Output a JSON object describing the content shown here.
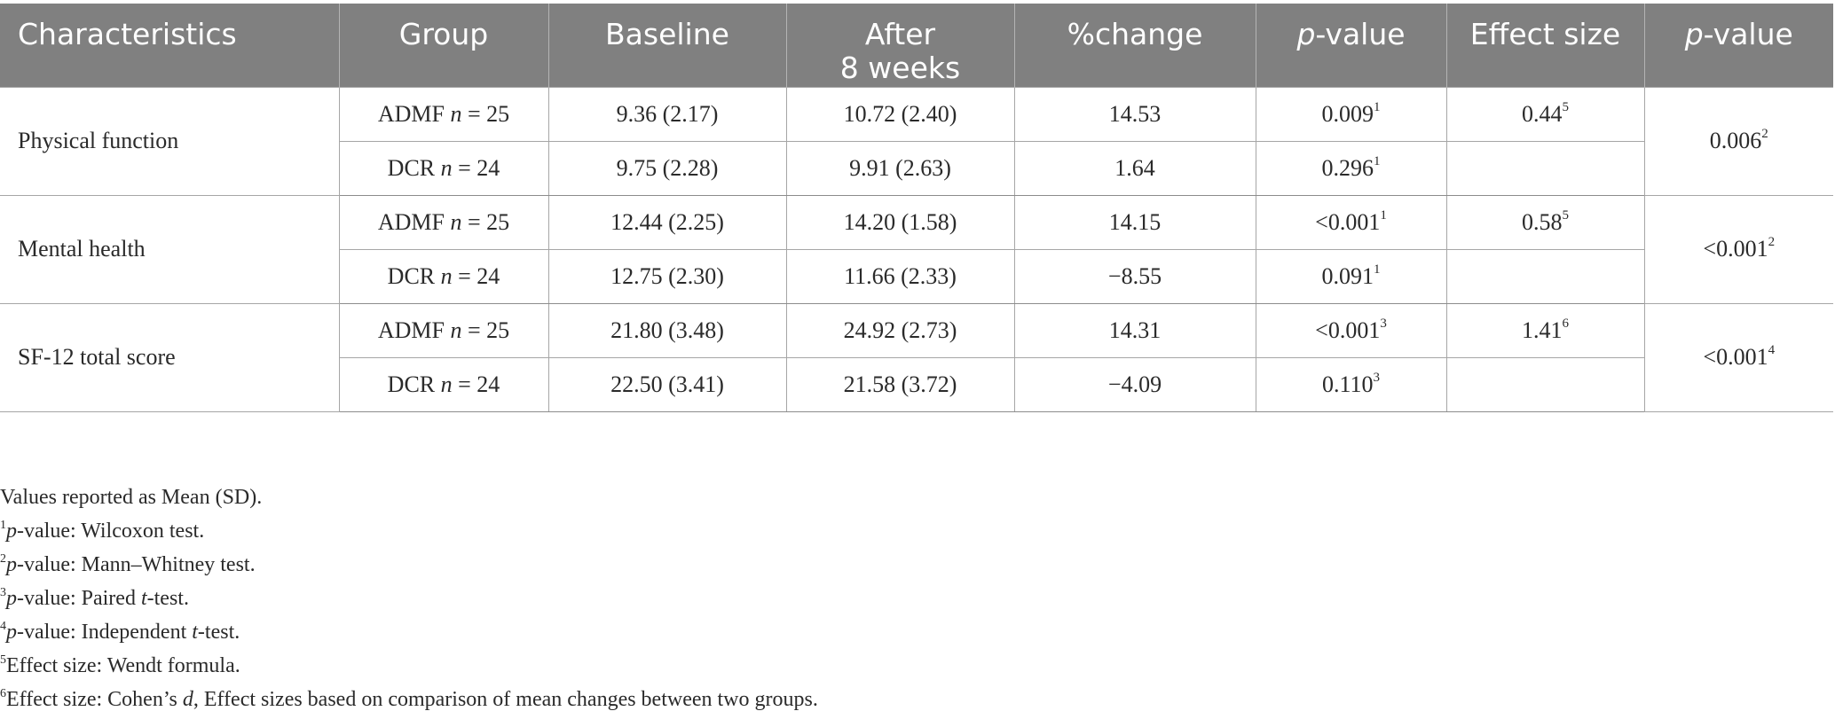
{
  "table": {
    "headers": {
      "characteristics": "Characteristics",
      "group": "Group",
      "baseline": "Baseline",
      "after_line1": "After",
      "after_line2": "8 weeks",
      "pct_change": "%change",
      "p": "p",
      "pvalue_suffix": "-value",
      "effect_size": "Effect size",
      "p2": "p",
      "pvalue2_suffix": "-value"
    },
    "sections": [
      {
        "characteristic": "Physical function",
        "between_pvalue": "0.006",
        "between_pvalue_sup": "2",
        "rows": [
          {
            "group": "ADMF",
            "n_label": "n",
            "n_value": " = 25",
            "baseline": "9.36 (2.17)",
            "after": "10.72 (2.40)",
            "change": "14.53",
            "pvalue": "0.009",
            "pvalue_sup": "1",
            "effect": "0.44",
            "effect_sup": "5"
          },
          {
            "group": "DCR",
            "n_label": "n",
            "n_value": " = 24",
            "baseline": "9.75 (2.28)",
            "after": "9.91 (2.63)",
            "change": "1.64",
            "pvalue": "0.296",
            "pvalue_sup": "1",
            "effect": "",
            "effect_sup": ""
          }
        ]
      },
      {
        "characteristic": "Mental health",
        "between_pvalue": "<0.001",
        "between_pvalue_sup": "2",
        "rows": [
          {
            "group": "ADMF",
            "n_label": "n",
            "n_value": " = 25",
            "baseline": "12.44 (2.25)",
            "after": "14.20 (1.58)",
            "change": "14.15",
            "pvalue": "<0.001",
            "pvalue_sup": "1",
            "effect": "0.58",
            "effect_sup": "5"
          },
          {
            "group": "DCR",
            "n_label": "n",
            "n_value": " = 24",
            "baseline": "12.75 (2.30)",
            "after": "11.66 (2.33)",
            "change": "−8.55",
            "pvalue": "0.091",
            "pvalue_sup": "1",
            "effect": "",
            "effect_sup": ""
          }
        ]
      },
      {
        "characteristic": "SF-12 total score",
        "between_pvalue": "<0.001",
        "between_pvalue_sup": "4",
        "rows": [
          {
            "group": "ADMF",
            "n_label": "n",
            "n_value": " = 25",
            "baseline": "21.80 (3.48)",
            "after": "24.92 (2.73)",
            "change": "14.31",
            "pvalue": "<0.001",
            "pvalue_sup": "3",
            "effect": "1.41",
            "effect_sup": "6"
          },
          {
            "group": "DCR",
            "n_label": "n",
            "n_value": " = 24",
            "baseline": "22.50 (3.41)",
            "after": "21.58 (3.72)",
            "change": "−4.09",
            "pvalue": "0.110",
            "pvalue_sup": "3",
            "effect": "",
            "effect_sup": ""
          }
        ]
      }
    ]
  },
  "notes": {
    "values_note": "Values reported as Mean (SD).",
    "items": [
      {
        "sup": "1",
        "italic": "p",
        "text": "-value: Wilcoxon test."
      },
      {
        "sup": "2",
        "italic": "p",
        "text": "-value: Mann–Whitney test."
      },
      {
        "sup": "3",
        "italic": "p",
        "text": "-value: Paired ",
        "italic2": "t",
        "text2": "-test."
      },
      {
        "sup": "4",
        "italic": "p",
        "text": "-value: Independent ",
        "italic2": "t",
        "text2": "-test."
      },
      {
        "sup": "5",
        "text": "Effect size: Wendt formula."
      },
      {
        "sup": "6",
        "text": "Effect size: Cohen’s ",
        "italic2": "d",
        "text2": ", Effect sizes based on comparison of mean changes between two groups."
      }
    ]
  }
}
